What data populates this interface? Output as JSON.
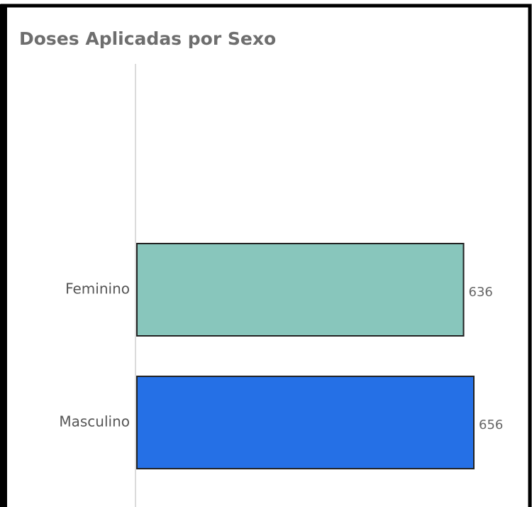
{
  "chart_data": {
    "type": "hbar",
    "title": "Doses Aplicadas por Sexo",
    "categories": [
      "Feminino",
      "Masculino"
    ],
    "values": [
      636,
      656
    ],
    "colors": [
      "#88c6bc",
      "#2570e6"
    ]
  }
}
